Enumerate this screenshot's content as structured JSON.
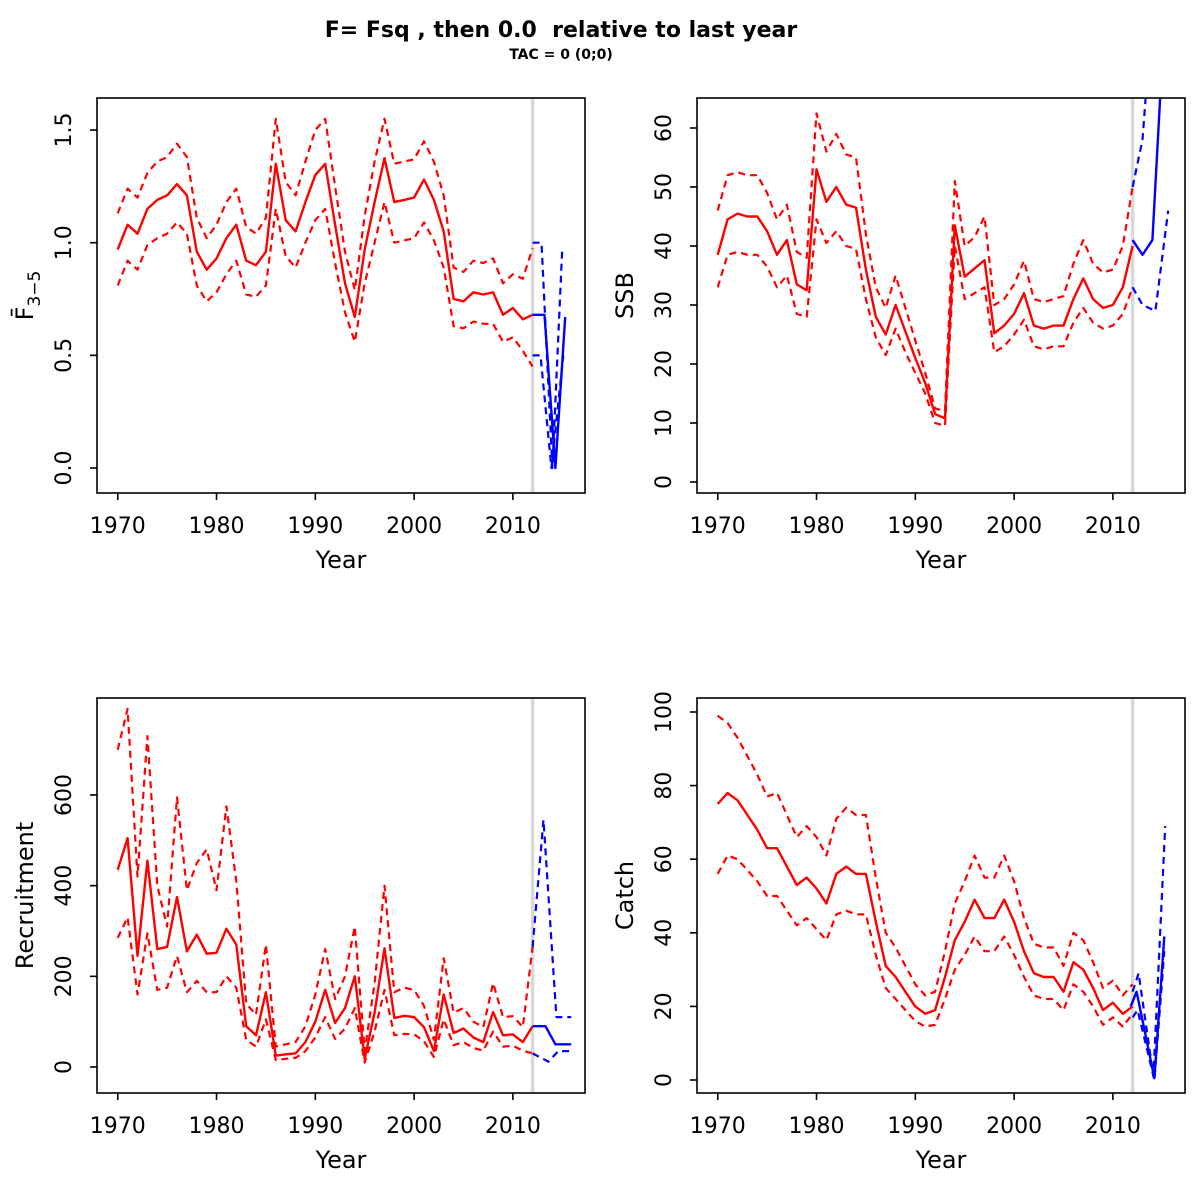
{
  "title": "F= Fsq , then 0.0  relative to last year",
  "subtitle": "TAC = 0 (0;0)",
  "colors": {
    "historical": "#FF0000",
    "projection": "#0000FF",
    "divider": "#D9D9D9",
    "axis": "#000000",
    "background": "#FFFFFF"
  },
  "divider_year": 2012,
  "x_axis": {
    "label": "Year",
    "ticks": [
      1970,
      1980,
      1990,
      2000,
      2010
    ],
    "range": [
      1967.9,
      2017.3
    ]
  },
  "chart_data": [
    {
      "type": "line",
      "name": "fbar",
      "ylabel": "F̄",
      "ylabel_sub": "3−5",
      "xlabel": "Year",
      "yticks": [
        0,
        0.5,
        1,
        1.5
      ],
      "ytick_labels": [
        "0.0",
        "0.5",
        "1.0",
        "1.5"
      ],
      "ylim": [
        0,
        1.64
      ],
      "series": [
        {
          "name": "ci-upper-historical",
          "color": "historical",
          "dash": true,
          "x_start": 1970,
          "y": [
            1.13,
            1.24,
            1.2,
            1.31,
            1.36,
            1.38,
            1.44,
            1.38,
            1.11,
            1.02,
            1.08,
            1.18,
            1.24,
            1.07,
            1.04,
            1.11,
            1.55,
            1.27,
            1.21,
            1.36,
            1.5,
            1.55,
            1.25,
            0.96,
            0.79,
            1.12,
            1.36,
            1.55,
            1.35,
            1.36,
            1.37,
            1.45,
            1.36,
            1.21,
            0.89,
            0.87,
            0.92,
            0.91,
            0.93,
            0.82,
            0.86,
            0.84,
            0.975
          ]
        },
        {
          "name": "ci-lower-historical",
          "color": "historical",
          "dash": true,
          "x_start": 1970,
          "y": [
            0.81,
            0.92,
            0.88,
            0.99,
            1.02,
            1.04,
            1.09,
            1.04,
            0.81,
            0.74,
            0.78,
            0.86,
            0.92,
            0.77,
            0.76,
            0.81,
            1.15,
            0.94,
            0.89,
            1.0,
            1.1,
            1.15,
            0.91,
            0.69,
            0.56,
            0.82,
            1.0,
            1.18,
            1.0,
            1.01,
            1.02,
            1.09,
            1.01,
            0.89,
            0.63,
            0.62,
            0.65,
            0.64,
            0.64,
            0.56,
            0.58,
            0.52,
            0.45
          ]
        },
        {
          "name": "median-historical",
          "color": "historical",
          "dash": false,
          "x_start": 1970,
          "y": [
            0.97,
            1.08,
            1.04,
            1.15,
            1.19,
            1.21,
            1.26,
            1.21,
            0.96,
            0.88,
            0.93,
            1.02,
            1.08,
            0.92,
            0.9,
            0.96,
            1.35,
            1.1,
            1.05,
            1.18,
            1.3,
            1.35,
            1.08,
            0.82,
            0.67,
            0.97,
            1.18,
            1.375,
            1.18,
            1.19,
            1.2,
            1.28,
            1.19,
            1.05,
            0.75,
            0.74,
            0.78,
            0.77,
            0.78,
            0.68,
            0.71,
            0.66,
            0.68
          ]
        },
        {
          "name": "ci-upper-projection",
          "color": "projection",
          "dash": true,
          "x": [
            2012,
            2012.9,
            2014.0,
            2015.0
          ],
          "y": [
            1.0,
            1.0,
            0.0,
            0.98
          ]
        },
        {
          "name": "ci-lower-projection",
          "color": "projection",
          "dash": true,
          "x": [
            2012,
            2012.8,
            2013.9,
            2015.1
          ],
          "y": [
            0.5,
            0.5,
            0.0,
            0.5
          ]
        },
        {
          "name": "median-projection",
          "color": "projection",
          "dash": false,
          "x": [
            2012,
            2013.2,
            2014.3,
            2015.3
          ],
          "y": [
            0.68,
            0.68,
            0.0,
            0.67
          ]
        }
      ]
    },
    {
      "type": "line",
      "name": "ssb",
      "ylabel": "SSB",
      "xlabel": "Year",
      "yticks": [
        0,
        10,
        20,
        30,
        40,
        50,
        60
      ],
      "ytick_labels": [
        "0",
        "10",
        "20",
        "30",
        "40",
        "50",
        "60"
      ],
      "ylim": [
        0,
        65
      ],
      "series": [
        {
          "name": "ci-upper-historical",
          "color": "historical",
          "dash": true,
          "x_start": 1970,
          "y": [
            46,
            52,
            52.5,
            52,
            52,
            49,
            44.5,
            47,
            39,
            38,
            62.5,
            56,
            59,
            55.5,
            55,
            42,
            33,
            29.5,
            35,
            29.5,
            24,
            18.5,
            12.5,
            12,
            51,
            40,
            41.5,
            45,
            30,
            31,
            33.5,
            37.5,
            31,
            30.5,
            31,
            31.5,
            37,
            41,
            37,
            35.5,
            36,
            40,
            50
          ]
        },
        {
          "name": "ci-lower-historical",
          "color": "historical",
          "dash": true,
          "x_start": 1970,
          "y": [
            33,
            38.5,
            39,
            38.5,
            38.5,
            36.5,
            33,
            35,
            28.5,
            28,
            44.5,
            40.5,
            42.5,
            40,
            39.5,
            31,
            24.5,
            21.5,
            26,
            22,
            18.5,
            15,
            10,
            9.5,
            40,
            31,
            32,
            33,
            22,
            23,
            25,
            27.5,
            23,
            22.5,
            23,
            23,
            27,
            29.5,
            27,
            26,
            26.5,
            28.5,
            33
          ]
        },
        {
          "name": "median-historical",
          "color": "historical",
          "dash": false,
          "x_start": 1970,
          "y": [
            38.5,
            44.5,
            45.5,
            45,
            45,
            42.5,
            38.5,
            41,
            33.5,
            32.5,
            53,
            47.5,
            50,
            47,
            46.5,
            36,
            28,
            25,
            30,
            25.5,
            21,
            16.8,
            11.5,
            10.8,
            43.5,
            34.8,
            36.2,
            37.6,
            25.2,
            26.5,
            28.5,
            32,
            26.5,
            26,
            26.5,
            26.5,
            31,
            34.5,
            31,
            29.5,
            30,
            33,
            40
          ]
        },
        {
          "name": "ci-upper-projection",
          "color": "projection",
          "dash": true,
          "x": [
            2012,
            2013,
            2014.2
          ],
          "y": [
            50,
            58,
            85
          ]
        },
        {
          "name": "ci-lower-projection",
          "color": "projection",
          "dash": true,
          "x": [
            2012,
            2013,
            2014.3,
            2015.6
          ],
          "y": [
            33,
            30,
            29,
            46
          ]
        },
        {
          "name": "median-projection",
          "color": "projection",
          "dash": false,
          "x": [
            2012,
            2013,
            2014,
            2015.2
          ],
          "y": [
            41,
            38.5,
            41,
            78
          ]
        }
      ]
    },
    {
      "type": "line",
      "name": "recruitment",
      "ylabel": "Recruitment",
      "xlabel": "Year",
      "yticks": [
        0,
        200,
        400,
        600
      ],
      "ytick_labels": [
        "0",
        "200",
        "400",
        "600"
      ],
      "ylim": [
        0,
        815
      ],
      "series": [
        {
          "name": "ci-upper-historical",
          "color": "historical",
          "dash": true,
          "x_start": 1970,
          "y": [
            700,
            790,
            420,
            730,
            400,
            310,
            595,
            390,
            450,
            480,
            390,
            575,
            410,
            140,
            115,
            270,
            45,
            50,
            55,
            90,
            160,
            260,
            150,
            200,
            310,
            35,
            185,
            400,
            165,
            175,
            170,
            135,
            60,
            240,
            120,
            130,
            100,
            88,
            185,
            110,
            112,
            88,
            265
          ]
        },
        {
          "name": "ci-lower-historical",
          "color": "historical",
          "dash": true,
          "x_start": 1970,
          "y": [
            285,
            330,
            160,
            295,
            170,
            175,
            245,
            165,
            190,
            165,
            165,
            200,
            175,
            60,
            45,
            105,
            15,
            18,
            20,
            35,
            65,
            110,
            62,
            85,
            130,
            10,
            78,
            170,
            70,
            73,
            72,
            57,
            22,
            105,
            48,
            55,
            42,
            36,
            78,
            45,
            47,
            36,
            30
          ]
        },
        {
          "name": "median-historical",
          "color": "historical",
          "dash": false,
          "x_start": 1970,
          "y": [
            435,
            505,
            245,
            455,
            260,
            265,
            375,
            255,
            292,
            250,
            252,
            305,
            270,
            90,
            70,
            165,
            25,
            28,
            30,
            55,
            100,
            170,
            97,
            130,
            200,
            18,
            120,
            262,
            108,
            113,
            110,
            88,
            35,
            160,
            75,
            85,
            65,
            55,
            121,
            70,
            72,
            55,
            90
          ]
        },
        {
          "name": "ci-upper-projection",
          "color": "projection",
          "dash": true,
          "x": [
            2012,
            2013.1,
            2014.4,
            2015.9
          ],
          "y": [
            265,
            545,
            110,
            110
          ]
        },
        {
          "name": "ci-lower-projection",
          "color": "projection",
          "dash": true,
          "x": [
            2012,
            2013.6,
            2014.6,
            2015.7
          ],
          "y": [
            30,
            12,
            35,
            35
          ]
        },
        {
          "name": "median-projection",
          "color": "projection",
          "dash": false,
          "x": [
            2012,
            2013.3,
            2014.3,
            2015.9
          ],
          "y": [
            90,
            90,
            50,
            50
          ]
        }
      ]
    },
    {
      "type": "line",
      "name": "catch",
      "ylabel": "Catch",
      "xlabel": "Year",
      "yticks": [
        0,
        20,
        40,
        60,
        80,
        100
      ],
      "ytick_labels": [
        "0",
        "20",
        "40",
        "60",
        "80",
        "100"
      ],
      "ylim": [
        0,
        104
      ],
      "series": [
        {
          "name": "ci-upper-historical",
          "color": "historical",
          "dash": true,
          "x_start": 1970,
          "y": [
            99,
            97,
            93,
            88,
            83,
            77,
            78,
            72,
            66,
            69,
            66,
            61,
            71,
            74,
            72,
            72,
            55,
            40,
            36,
            31,
            26,
            23,
            24,
            35,
            48,
            54,
            61,
            55,
            55,
            61,
            54,
            44,
            37,
            36,
            36,
            31,
            40,
            38,
            32,
            25,
            27,
            23,
            26
          ]
        },
        {
          "name": "ci-lower-historical",
          "color": "historical",
          "dash": true,
          "x_start": 1970,
          "y": [
            56,
            61,
            60,
            57,
            54,
            50,
            50,
            46,
            42,
            44,
            41,
            38,
            45,
            46,
            45,
            45,
            34,
            25,
            22,
            19,
            16,
            14.5,
            15,
            22,
            30,
            34,
            39,
            35,
            35,
            39,
            34,
            28,
            23,
            22,
            22,
            19,
            26,
            24,
            20,
            15,
            17,
            14.5,
            18
          ]
        },
        {
          "name": "median-historical",
          "color": "historical",
          "dash": false,
          "x_start": 1970,
          "y": [
            75,
            78,
            76,
            72,
            68,
            63,
            63,
            58,
            53,
            55,
            52,
            48,
            56,
            58,
            56,
            56,
            43,
            31,
            28,
            24,
            20,
            18,
            19,
            28,
            38,
            43,
            49,
            44,
            44,
            49,
            43,
            35,
            29,
            28,
            28,
            24,
            32,
            30,
            25,
            19,
            21,
            18,
            20
          ]
        },
        {
          "name": "ci-upper-projection",
          "color": "projection",
          "dash": true,
          "x": [
            2012,
            2012.6,
            2014.1,
            2015.3
          ],
          "y": [
            24,
            29,
            1,
            69
          ]
        },
        {
          "name": "ci-lower-projection",
          "color": "projection",
          "dash": true,
          "x": [
            2012,
            2012.5,
            2014.2,
            2015.2
          ],
          "y": [
            17,
            19,
            0,
            35
          ]
        },
        {
          "name": "median-projection",
          "color": "projection",
          "dash": false,
          "x": [
            2011.8,
            2012.4,
            2014.2,
            2015.2
          ],
          "y": [
            20,
            24,
            0.5,
            39
          ]
        }
      ]
    }
  ]
}
